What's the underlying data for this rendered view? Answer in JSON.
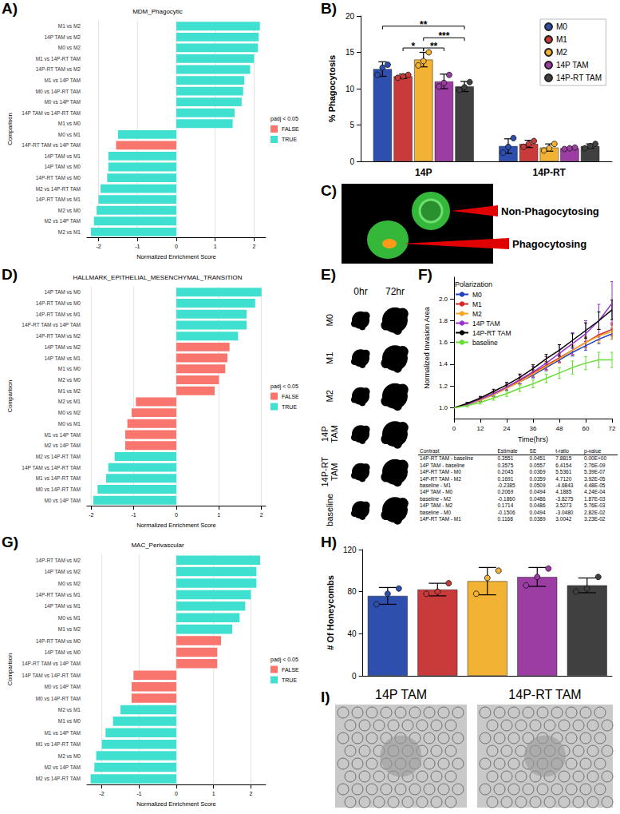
{
  "chart_data": [
    {
      "panel": "A)",
      "type": "bar",
      "orientation": "horizontal",
      "title": "MDM_Phagocytic",
      "x_label": "Normalized Enrichment Score",
      "y_label": "Comparison",
      "categories": [
        "M1 vs M2",
        "14P TAM vs M2",
        "M0 vs M2",
        "M1 vs 14P-RT TAM",
        "14P-RT TAM vs M2",
        "M1 vs 14P TAM",
        "M0 vs 14P-RT TAM",
        "M0 vs 14P TAM",
        "14P TAM vs 14P-RT TAM",
        "M1 vs M0",
        "M0 vs M1",
        "14P-RT TAM vs 14P TAM",
        "14P TAM vs M1",
        "14P TAM vs M0",
        "14P-RT TAM vs M0",
        "M2 vs 14P-RT TAM",
        "14P-RT TAM vs M1",
        "M2 vs M0",
        "M2 vs 14P TAM",
        "M2 vs M1"
      ],
      "series": [
        {
          "name": "FALSE",
          "color": "#F8766D",
          "values": [
            null,
            null,
            null,
            null,
            null,
            null,
            null,
            null,
            null,
            null,
            null,
            -1.55,
            null,
            null,
            null,
            null,
            null,
            null,
            null,
            null
          ]
        },
        {
          "name": "TRUE",
          "color": "#40E0D0",
          "values": [
            2.15,
            2.12,
            2.1,
            2.0,
            1.9,
            1.75,
            1.72,
            1.68,
            1.5,
            1.45,
            -1.5,
            null,
            -1.75,
            -1.75,
            -1.78,
            -1.95,
            -2.0,
            -2.05,
            -2.12,
            -2.2
          ]
        }
      ],
      "xlim": [
        -2.3,
        2.3
      ],
      "xticks": [
        -2,
        -1,
        0,
        1,
        2
      ],
      "grid": true,
      "legend": "right",
      "legend_title": "padj < 0.05"
    },
    {
      "panel": "B)",
      "type": "bar",
      "y_label": "% Phagocytosis",
      "categories": [
        "14P",
        "14P-RT"
      ],
      "series": [
        {
          "name": "M0",
          "color": "#2F4FAF",
          "values": [
            12.7,
            2.1
          ],
          "errors": [
            1.0,
            1.0
          ],
          "points": [
            [
              11.9,
              12.9,
              13.3
            ],
            [
              1.2,
              2.0,
              3.2
            ]
          ]
        },
        {
          "name": "M1",
          "color": "#C93A3A",
          "values": [
            11.7,
            2.4
          ],
          "errors": [
            0.3,
            0.5
          ],
          "points": [
            [
              11.5,
              11.7,
              11.9
            ],
            [
              2.0,
              2.4,
              2.8
            ]
          ]
        },
        {
          "name": "M2",
          "color": "#F2B233",
          "values": [
            14.0,
            1.9
          ],
          "errors": [
            1.0,
            0.5
          ],
          "points": [
            [
              13.2,
              13.8,
              15.0
            ],
            [
              1.5,
              1.8,
              2.4
            ]
          ]
        },
        {
          "name": "14P TAM",
          "color": "#9B3DA3",
          "values": [
            11.0,
            1.8
          ],
          "errors": [
            1.0,
            0.1
          ],
          "points": [
            [
              10.3,
              10.8,
              11.9
            ],
            [
              1.7,
              1.8,
              1.9
            ]
          ]
        },
        {
          "name": "14P-RT TAM",
          "color": "#404040",
          "values": [
            10.3,
            2.1
          ],
          "errors": [
            0.7,
            0.3
          ],
          "points": [
            [
              9.8,
              10.2,
              10.9
            ],
            [
              1.8,
              2.1,
              2.4
            ]
          ]
        }
      ],
      "ylim": [
        0,
        20
      ],
      "yticks": [
        0,
        5,
        10,
        15,
        20
      ],
      "legend": "upper right",
      "annotations": [
        {
          "category": "14P",
          "from": "M0",
          "to": "14P-RT TAM",
          "y": 18.6,
          "label": "**"
        },
        {
          "category": "14P",
          "from": "M2",
          "to": "14P-RT TAM",
          "y": 17.0,
          "label": "***"
        },
        {
          "category": "14P",
          "from": "M1",
          "to": "M2",
          "y": 15.6,
          "label": "*"
        },
        {
          "category": "14P",
          "from": "M2",
          "to": "14P TAM",
          "y": 15.6,
          "label": "**"
        }
      ]
    },
    {
      "panel": "D)",
      "type": "bar",
      "orientation": "horizontal",
      "title": "HALLMARK_EPITHELIAL_MESENCHYMAL_TRANSITION",
      "x_label": "Normalized Enrichment Score",
      "y_label": "Comparison",
      "categories": [
        "14P TAM vs M0",
        "14P-RT TAM vs M0",
        "14P-RT TAM vs M1",
        "14P-RT TAM vs 14P TAM",
        "14P-RT TAM vs M2",
        "14P TAM vs M2",
        "14P TAM vs M1",
        "M1 vs M0",
        "M2 vs M0",
        "M1 vs M2",
        "M2 vs M1",
        "M0 vs M2",
        "M0 vs M1",
        "M1 vs 14P TAM",
        "M2 vs 14P TAM",
        "M2 vs 14P-RT TAM",
        "14P TAM vs 14P-RT TAM",
        "M1 vs 14P-RT TAM",
        "M0 vs 14P-RT TAM",
        "M0 vs 14P TAM"
      ],
      "series": [
        {
          "name": "FALSE",
          "color": "#F8766D",
          "values": [
            null,
            null,
            null,
            null,
            null,
            1.25,
            1.2,
            1.15,
            1.0,
            0.9,
            -0.95,
            -1.05,
            -1.15,
            -1.2,
            -1.2,
            null,
            null,
            null,
            null,
            null
          ]
        },
        {
          "name": "TRUE",
          "color": "#40E0D0",
          "values": [
            2.0,
            1.85,
            1.65,
            1.65,
            1.45,
            null,
            null,
            null,
            null,
            null,
            null,
            null,
            null,
            null,
            null,
            -1.45,
            -1.6,
            -1.65,
            -1.85,
            -1.95
          ]
        }
      ],
      "xlim": [
        -2.1,
        2.1
      ],
      "xticks": [
        -2,
        -1,
        0,
        1,
        2
      ],
      "grid": true,
      "legend": "right",
      "legend_title": "padj < 0.05"
    },
    {
      "panel": "F)",
      "type": "line",
      "x_label": "Time(hrs)",
      "y_label": "Normalized Invasion Area",
      "x": [
        0,
        6,
        12,
        18,
        24,
        30,
        36,
        42,
        48,
        54,
        60,
        66,
        72
      ],
      "series": [
        {
          "name": "M0",
          "color": "#1F3FBF",
          "values": [
            1,
            1.03,
            1.07,
            1.12,
            1.18,
            1.24,
            1.3,
            1.37,
            1.44,
            1.51,
            1.57,
            1.63,
            1.68
          ],
          "errors": [
            0,
            0.01,
            0.01,
            0.015,
            0.02,
            0.02,
            0.025,
            0.03,
            0.03,
            0.035,
            0.04,
            0.04,
            0.05
          ]
        },
        {
          "name": "M1",
          "color": "#D62728",
          "values": [
            1,
            1.03,
            1.08,
            1.13,
            1.19,
            1.25,
            1.32,
            1.39,
            1.46,
            1.53,
            1.6,
            1.67,
            1.72
          ],
          "errors": [
            0,
            0.01,
            0.015,
            0.02,
            0.025,
            0.03,
            0.03,
            0.035,
            0.04,
            0.045,
            0.05,
            0.05,
            0.06
          ]
        },
        {
          "name": "M2",
          "color": "#F5A623",
          "values": [
            1,
            1.03,
            1.07,
            1.12,
            1.18,
            1.24,
            1.31,
            1.38,
            1.45,
            1.53,
            1.6,
            1.66,
            1.7
          ],
          "errors": [
            0,
            0.01,
            0.015,
            0.02,
            0.02,
            0.025,
            0.03,
            0.035,
            0.04,
            0.045,
            0.05,
            0.06,
            0.07
          ]
        },
        {
          "name": "14P TAM",
          "color": "#9933CC",
          "values": [
            1,
            1.03,
            1.08,
            1.13,
            1.19,
            1.26,
            1.33,
            1.41,
            1.5,
            1.59,
            1.68,
            1.8,
            1.96
          ],
          "errors": [
            0,
            0.01,
            0.02,
            0.025,
            0.03,
            0.04,
            0.05,
            0.06,
            0.08,
            0.1,
            0.12,
            0.15,
            0.2
          ]
        },
        {
          "name": "14P-RT TAM",
          "color": "#000000",
          "values": [
            1,
            1.04,
            1.09,
            1.15,
            1.21,
            1.28,
            1.36,
            1.45,
            1.53,
            1.62,
            1.71,
            1.8,
            1.9
          ],
          "errors": [
            0,
            0.01,
            0.015,
            0.02,
            0.025,
            0.03,
            0.035,
            0.04,
            0.05,
            0.06,
            0.07,
            0.08,
            0.09
          ]
        },
        {
          "name": "baseline",
          "color": "#66DD33",
          "values": [
            1,
            1.02,
            1.05,
            1.09,
            1.13,
            1.18,
            1.22,
            1.27,
            1.32,
            1.37,
            1.41,
            1.44,
            1.44
          ],
          "errors": [
            0,
            0.01,
            0.015,
            0.02,
            0.025,
            0.03,
            0.035,
            0.04,
            0.05,
            0.06,
            0.06,
            0.07,
            0.07
          ]
        }
      ],
      "xlim": [
        0,
        72
      ],
      "xticks": [
        0,
        12,
        24,
        36,
        48,
        60,
        72
      ],
      "ylim": [
        0.9,
        2.2
      ],
      "yticks": [
        {
          "value": 1,
          "label": "1.0"
        },
        1.2,
        1.4,
        1.6,
        1.8,
        {
          "value": 2,
          "label": "2.0"
        }
      ],
      "legend": "upper left",
      "legend_title": "Polarization"
    },
    {
      "panel": "G)",
      "type": "bar",
      "orientation": "horizontal",
      "title": "MAC_Perivascular",
      "x_label": "Normalized Enrichment Score",
      "y_label": "Comparison",
      "categories": [
        "14P-RT TAM vs M2",
        "14P TAM vs M2",
        "M0 vs M2",
        "14P-RT TAM vs M1",
        "14P TAM vs M1",
        "M0 vs M1",
        "M1 vs M2",
        "14P-RT TAM vs M0",
        "14P TAM vs M0",
        "14P-RT TAM vs 14P TAM",
        "14P TAM vs 14P-RT TAM",
        "M0 vs 14P TAM",
        "M0 vs 14P-RT TAM",
        "M2 vs M1",
        "M1 vs M0",
        "M1 vs 14P TAM",
        "M1 vs 14P-RT TAM",
        "M2 vs M0",
        "M2 vs 14P TAM",
        "M2 vs 14P-RT TAM"
      ],
      "series": [
        {
          "name": "FALSE",
          "color": "#F8766D",
          "values": [
            null,
            null,
            null,
            null,
            null,
            null,
            null,
            1.2,
            1.1,
            1.1,
            -1.15,
            -1.2,
            -1.2,
            null,
            null,
            null,
            null,
            null,
            null,
            null
          ]
        },
        {
          "name": "TRUE",
          "color": "#40E0D0",
          "values": [
            2.25,
            2.15,
            2.15,
            2.0,
            1.85,
            1.7,
            1.5,
            null,
            null,
            null,
            null,
            null,
            null,
            -1.5,
            -1.7,
            -1.9,
            -2.0,
            -2.15,
            -2.2,
            -2.3
          ]
        }
      ],
      "xlim": [
        -2.4,
        2.4
      ],
      "xticks": [
        -2,
        -1,
        0,
        1,
        2
      ],
      "grid": true,
      "legend": "right",
      "legend_title": "padj < 0.05"
    },
    {
      "panel": "H)",
      "type": "bar",
      "y_label": "# Of Honeycombs",
      "categories": [
        null,
        null,
        null,
        null,
        null
      ],
      "values": [
        76,
        82,
        90,
        94,
        86
      ],
      "errors": [
        8,
        6,
        13,
        9,
        7
      ],
      "points": [
        [
          68,
          78,
          83
        ],
        [
          78,
          80,
          88
        ],
        [
          78,
          93,
          100
        ],
        [
          86,
          94,
          102
        ],
        [
          80,
          83,
          94
        ]
      ],
      "colors": [
        "#2F4FAF",
        "#C93A3A",
        "#F2B233",
        "#9B3DA3",
        "#404040"
      ],
      "ylim": [
        0,
        120
      ],
      "yticks": [
        0,
        40,
        80,
        120
      ],
      "tick_labels": "y"
    }
  ],
  "figures": [
    {
      "panel": "C)",
      "labels": [
        "Non-Phagocytosing",
        "Phagocytosing"
      ]
    },
    {
      "panel": "E)",
      "columns": [
        "0hr",
        "72hr"
      ],
      "rows": [
        "M0",
        "M1",
        "M2",
        "14P TAM",
        "14P-RT TAM",
        "baseline"
      ]
    },
    {
      "panel": "I)",
      "labels": [
        "14P TAM",
        "14P-RT TAM"
      ]
    }
  ],
  "table": {
    "header": [
      "Contrast",
      "Estimate",
      "SE",
      "t-ratio",
      "p-value"
    ],
    "rows": [
      [
        "14P-RT TAM - baseline",
        "0.3551",
        "0.0451",
        "7.8815",
        "0.00E+00"
      ],
      [
        "14P TAM - baseline",
        "0.3575",
        "0.0557",
        "6.4154",
        "2.76E-09"
      ],
      [
        "14P-RT TAM - M0",
        "0.2045",
        "0.0369",
        "5.5361",
        "5.39E-07"
      ],
      [
        "14P-RT TAM - M2",
        "0.1691",
        "0.0359",
        "4.7120",
        "3.92E-05"
      ],
      [
        "baseline - M1",
        "-0.2385",
        "0.0509",
        "-4.6843",
        "4.48E-05"
      ],
      [
        "14P TAM - M0",
        "0.2069",
        "0.0494",
        "4.1885",
        "4.24E-04"
      ],
      [
        "baseline - M2",
        "-0.1860",
        "0.0486",
        "-3.8275",
        "1.87E-03"
      ],
      [
        "14P TAM - M2",
        "0.1714",
        "0.0486",
        "3.5273",
        "5.76E-03"
      ],
      [
        "baseline - M0",
        "-0.1506",
        "0.0494",
        "-3.0480",
        "2.82E-02"
      ],
      [
        "14P-RT TAM - M1",
        "0.1168",
        "0.0389",
        "3.0042",
        "3.23E-02"
      ]
    ]
  }
}
